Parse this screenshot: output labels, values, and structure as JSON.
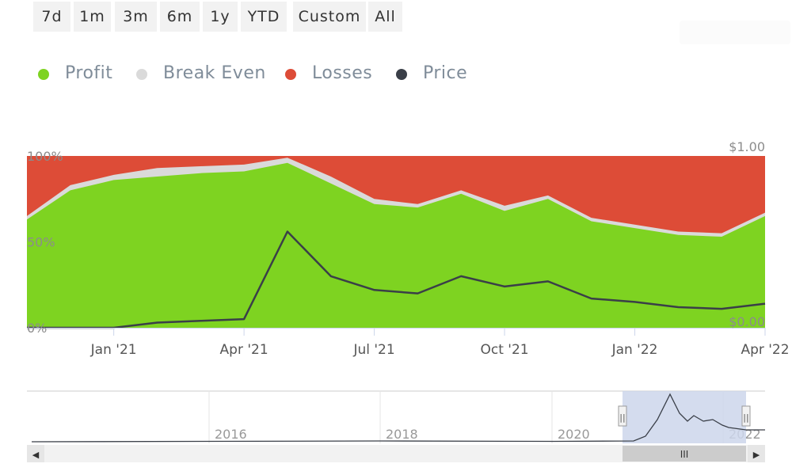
{
  "range_selector": {
    "buttons": [
      "7d",
      "1m",
      "3m",
      "6m",
      "1y",
      "YTD",
      "Custom",
      "All"
    ]
  },
  "legend": [
    {
      "label": "Profit",
      "color": "#7ed321"
    },
    {
      "label": "Break Even",
      "color": "#dadada"
    },
    {
      "label": "Losses",
      "color": "#dd4c37"
    },
    {
      "label": "Price",
      "color": "#3a3f48"
    }
  ],
  "chart_data": {
    "type": "area",
    "stacked_percent": true,
    "x": [
      "Nov '20",
      "Dec '20",
      "Jan '21",
      "Feb '21",
      "Mar '21",
      "Apr '21",
      "May '21",
      "Jun '21",
      "Jul '21",
      "Aug '21",
      "Sep '21",
      "Oct '21",
      "Nov '21",
      "Dec '21",
      "Jan '22",
      "Feb '22",
      "Mar '22",
      "Apr '22"
    ],
    "series": [
      {
        "name": "Profit",
        "values": [
          63,
          80,
          86,
          88,
          90,
          91,
          96,
          84,
          72,
          70,
          78,
          68,
          75,
          62,
          58,
          54,
          53,
          65
        ]
      },
      {
        "name": "Break Even",
        "values": [
          2,
          3,
          3,
          5,
          4,
          4,
          3,
          4,
          3,
          2,
          2,
          3,
          2,
          2,
          2,
          2,
          2,
          2
        ]
      },
      {
        "name": "Losses",
        "values": [
          35,
          17,
          11,
          7,
          6,
          5,
          1,
          12,
          25,
          28,
          20,
          29,
          23,
          36,
          40,
          44,
          45,
          33
        ]
      },
      {
        "name": "Price",
        "values": [
          0.0,
          0.0,
          0.0,
          0.03,
          0.04,
          0.05,
          0.56,
          0.3,
          0.22,
          0.2,
          0.3,
          0.24,
          0.27,
          0.17,
          0.15,
          0.12,
          0.11,
          0.14
        ]
      }
    ],
    "x_tick_labels": [
      "Jan '21",
      "Apr '21",
      "Jul '21",
      "Oct '21",
      "Jan '22",
      "Apr '22"
    ],
    "y_left_ticks": [
      "0%",
      "50%",
      "100%"
    ],
    "y_right_ticks": [
      "$0.00",
      "$1.00"
    ],
    "ylim_left": [
      0,
      100
    ],
    "ylim_right": [
      0,
      1
    ],
    "navigator": {
      "year_labels": [
        "2016",
        "2018",
        "2020",
        "2022"
      ],
      "handle_glyph": "||",
      "scroll_left": "◀",
      "scroll_right": "▶",
      "scroll_thumb": "III"
    }
  }
}
